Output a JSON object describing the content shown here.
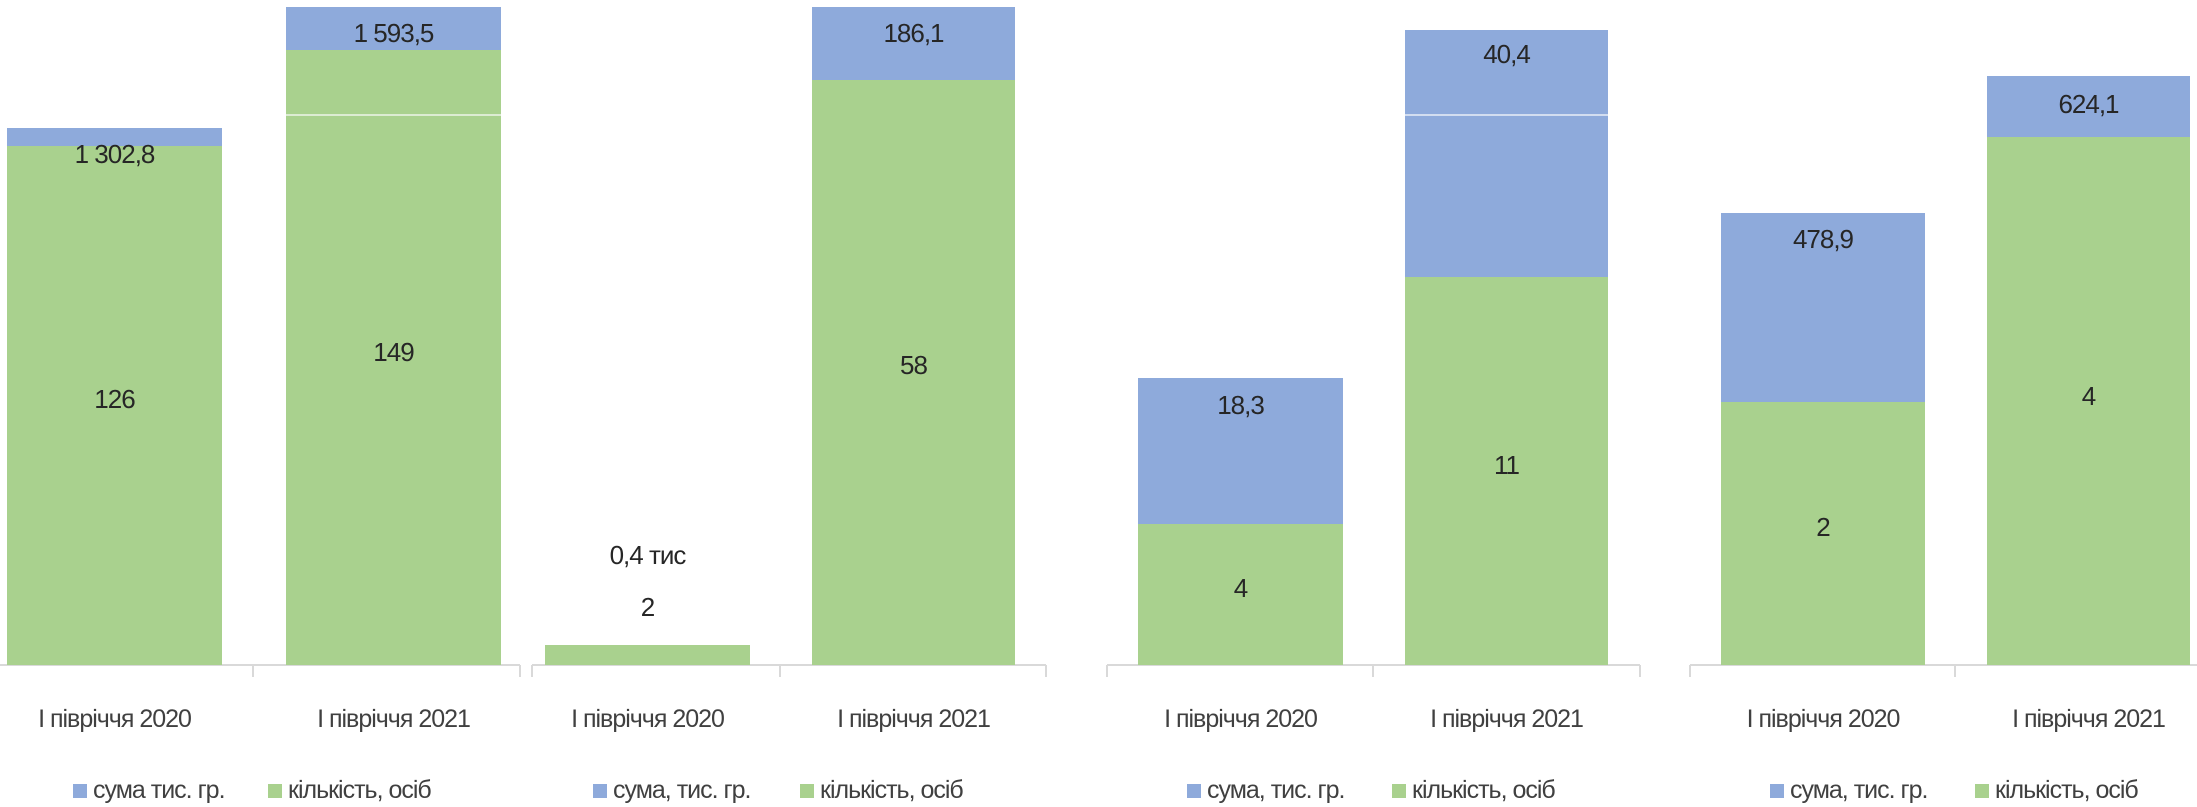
{
  "colors": {
    "sum": "#8eaadb",
    "count": "#a9d18e",
    "axis": "#d9d9d9"
  },
  "chart_data": [
    {
      "type": "bar",
      "stacked": true,
      "categories": [
        "І півріччя 2020",
        "І півріччя 2021"
      ],
      "series": [
        {
          "name": "кількість, осіб",
          "values": [
            126,
            149
          ],
          "labels": [
            "126",
            "149"
          ]
        },
        {
          "name": "сума тис. гр.",
          "values": [
            1302.8,
            1593.5
          ],
          "labels": [
            "1 302,8",
            "1 593,5"
          ]
        }
      ],
      "legend": "bottom"
    },
    {
      "type": "bar",
      "stacked": true,
      "categories": [
        "І півріччя 2020",
        "І півріччя 2021"
      ],
      "series": [
        {
          "name": "кількість, осіб",
          "values": [
            2,
            58
          ],
          "labels": [
            "2",
            "58"
          ]
        },
        {
          "name": "сума, тис. гр.",
          "values": [
            0.4,
            186.1
          ],
          "labels": [
            "0,4 тис",
            "186,1"
          ]
        }
      ],
      "legend": "bottom"
    },
    {
      "type": "bar",
      "stacked": true,
      "categories": [
        "І півріччя 2020",
        "І півріччя 2021"
      ],
      "series": [
        {
          "name": "кількість, осіб",
          "values": [
            4,
            11
          ],
          "labels": [
            "4",
            "11"
          ]
        },
        {
          "name": "сума, тис. гр.",
          "values": [
            18.3,
            40.4
          ],
          "labels": [
            "18,3",
            "40,4"
          ]
        }
      ],
      "legend": "bottom"
    },
    {
      "type": "bar",
      "stacked": true,
      "categories": [
        "І півріччя 2020",
        "І півріччя 2021"
      ],
      "series": [
        {
          "name": "кількість, осіб",
          "values": [
            2,
            4
          ],
          "labels": [
            "2",
            "4"
          ]
        },
        {
          "name": "сума, тис. гр.",
          "values": [
            478.9,
            624.1
          ],
          "labels": [
            "478,9",
            "624,1"
          ]
        }
      ],
      "legend": "bottom"
    }
  ]
}
